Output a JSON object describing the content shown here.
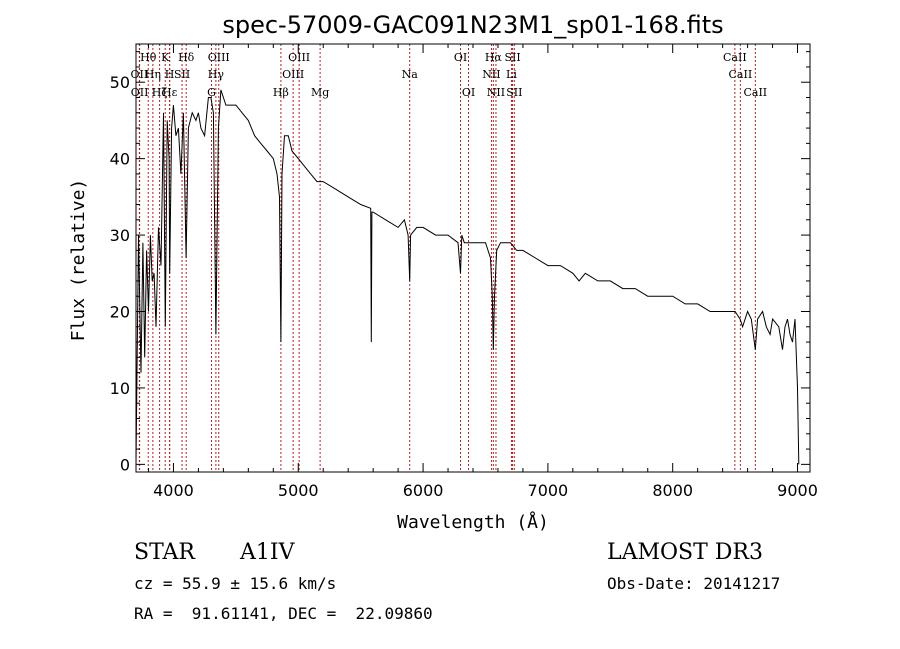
{
  "chart_data": {
    "type": "line",
    "title": "spec-57009-GAC091N23M1_sp01-168.fits",
    "xlabel": "Wavelength (Å)",
    "ylabel": "Flux (relative)",
    "xlim": [
      3700,
      9100
    ],
    "ylim": [
      -1,
      55
    ],
    "xticks": [
      4000,
      5000,
      6000,
      7000,
      8000,
      9000
    ],
    "yticks": [
      0,
      10,
      20,
      30,
      40,
      50
    ],
    "grid": false,
    "series": [
      {
        "name": "flux",
        "x": [
          3700,
          3720,
          3740,
          3755,
          3770,
          3785,
          3800,
          3815,
          3830,
          3845,
          3860,
          3880,
          3900,
          3920,
          3935,
          3950,
          3965,
          3970,
          3985,
          4000,
          4020,
          4040,
          4060,
          4080,
          4101,
          4120,
          4150,
          4180,
          4200,
          4220,
          4250,
          4280,
          4300,
          4320,
          4340,
          4360,
          4380,
          4420,
          4460,
          4500,
          4550,
          4600,
          4650,
          4700,
          4750,
          4800,
          4830,
          4850,
          4861,
          4870,
          4890,
          4920,
          4950,
          5000,
          5050,
          5100,
          5150,
          5200,
          5300,
          5400,
          5500,
          5580,
          5585,
          5590,
          5600,
          5700,
          5800,
          5850,
          5880,
          5893,
          5900,
          5950,
          6000,
          6100,
          6200,
          6280,
          6300,
          6310,
          6330,
          6400,
          6450,
          6500,
          6540,
          6555,
          6563,
          6572,
          6590,
          6620,
          6650,
          6680,
          6700,
          6750,
          6800,
          6900,
          7000,
          7100,
          7200,
          7250,
          7300,
          7400,
          7500,
          7600,
          7700,
          7800,
          7900,
          8000,
          8100,
          8200,
          8300,
          8400,
          8500,
          8540,
          8560,
          8600,
          8630,
          8662,
          8680,
          8720,
          8750,
          8780,
          8800,
          8850,
          8880,
          8900,
          8920,
          8940,
          8960,
          8980,
          9000,
          9010
        ],
        "values": [
          0,
          30,
          12,
          29,
          14,
          28,
          20,
          30,
          24,
          25,
          18,
          31,
          26,
          46,
          18,
          45,
          40,
          25,
          44,
          47,
          43,
          44,
          38,
          46,
          27,
          44,
          46,
          45,
          46,
          44,
          43,
          48,
          48,
          46,
          17,
          44,
          49,
          47,
          47,
          47,
          46,
          45,
          43,
          42,
          41,
          40,
          38,
          35,
          16,
          38,
          43,
          43,
          41,
          40,
          39,
          38,
          37,
          37,
          36,
          35,
          34,
          33.5,
          16,
          33,
          33,
          32,
          31,
          32,
          30,
          24,
          30,
          31,
          31,
          30,
          30,
          29,
          25,
          30,
          29,
          29,
          29,
          29,
          27,
          22,
          15,
          22,
          28,
          29,
          29,
          29,
          29,
          28,
          28,
          27,
          26,
          26,
          25,
          24,
          25,
          24,
          24,
          23,
          23,
          22,
          22,
          22,
          21,
          21,
          20,
          20,
          20,
          19,
          18,
          20,
          19,
          15,
          19,
          20,
          18,
          17,
          19,
          18,
          15,
          18,
          19,
          17,
          16,
          19,
          10,
          0
        ]
      }
    ],
    "lines": [
      {
        "label": "Hθ",
        "x": 3798,
        "row": 0
      },
      {
        "label": "K",
        "x": 3934,
        "row": 0
      },
      {
        "label": "Hδ",
        "x": 4102,
        "row": 0
      },
      {
        "label": "OIII",
        "x": 4363,
        "row": 0
      },
      {
        "label": "OIII",
        "x": 5007,
        "row": 0
      },
      {
        "label": "OI",
        "x": 6300,
        "row": 0
      },
      {
        "label": "Hα",
        "x": 6563,
        "row": 0
      },
      {
        "label": "SII",
        "x": 6717,
        "row": 0
      },
      {
        "label": "CaII",
        "x": 8498,
        "row": 0
      },
      {
        "label": "OII",
        "x": 3727,
        "row": 1
      },
      {
        "label": "Hη",
        "x": 3835,
        "row": 1
      },
      {
        "label": "H",
        "x": 3969,
        "row": 1
      },
      {
        "label": "SII",
        "x": 4069,
        "row": 1
      },
      {
        "label": "Hγ",
        "x": 4340,
        "row": 1
      },
      {
        "label": "OIII",
        "x": 4959,
        "row": 1
      },
      {
        "label": "Na",
        "x": 5893,
        "row": 1
      },
      {
        "label": "NII",
        "x": 6548,
        "row": 1
      },
      {
        "label": "Li",
        "x": 6708,
        "row": 1
      },
      {
        "label": "CaII",
        "x": 8542,
        "row": 1
      },
      {
        "label": "OII",
        "x": 3729,
        "row": 2
      },
      {
        "label": "Hζ",
        "x": 3889,
        "row": 2
      },
      {
        "label": "Hε",
        "x": 3970,
        "row": 2
      },
      {
        "label": "G",
        "x": 4305,
        "row": 2
      },
      {
        "label": "Hβ",
        "x": 4861,
        "row": 2
      },
      {
        "label": "Mg",
        "x": 5175,
        "row": 2
      },
      {
        "label": "OI",
        "x": 6364,
        "row": 2
      },
      {
        "label": "NII",
        "x": 6584,
        "row": 2
      },
      {
        "label": "SII",
        "x": 6731,
        "row": 2
      },
      {
        "label": "CaII",
        "x": 8662,
        "row": 2
      }
    ],
    "line_color": "#b22222"
  },
  "info": {
    "object_type": "STAR",
    "subclass": "A1IV",
    "survey": "LAMOST DR3",
    "cz": "cz = 55.9 ± 15.6 km/s",
    "obs_date": "Obs-Date: 20141217",
    "coords": "RA =  91.61141, DEC =  22.09860"
  }
}
